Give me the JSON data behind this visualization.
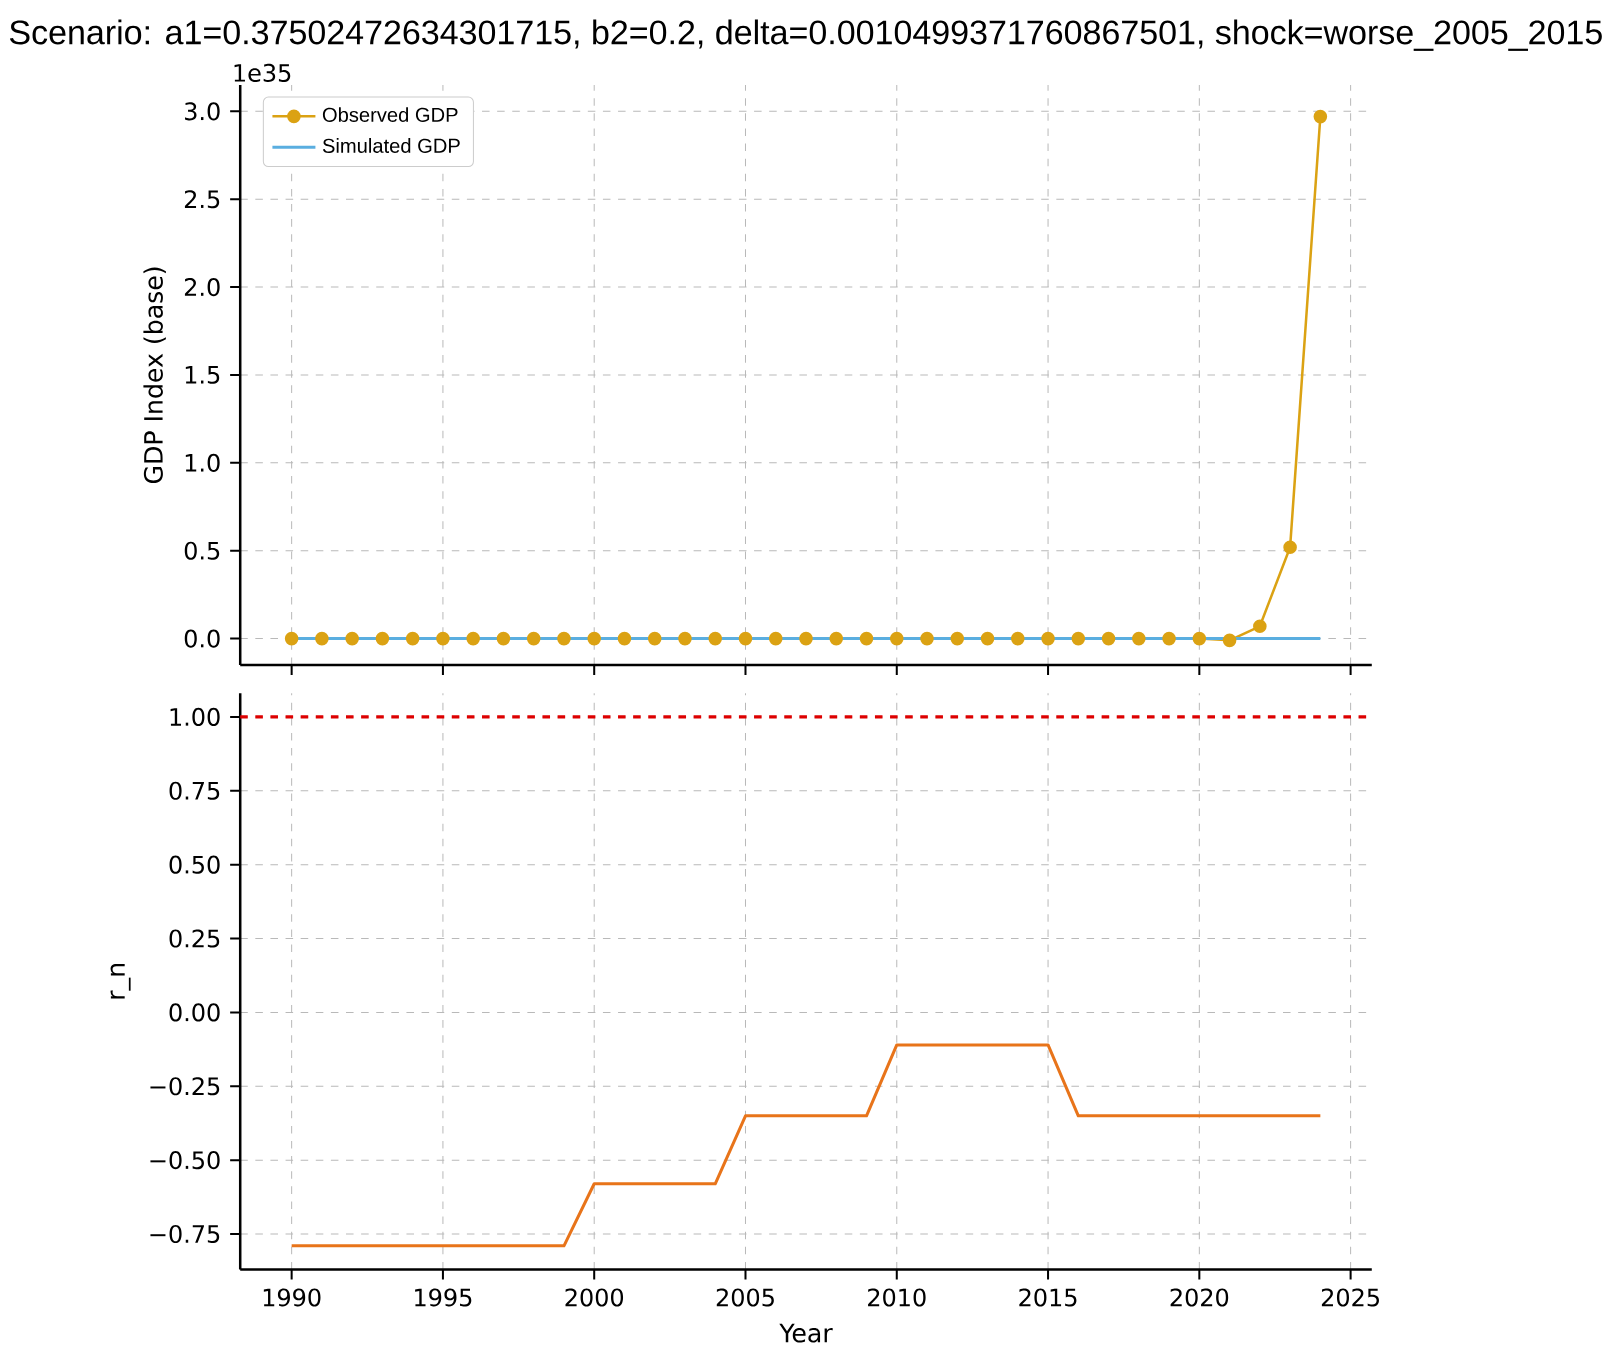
{
  "chart_data": [
    {
      "type": "line",
      "title": "Scenario: a1=0.37502472634301715, b2=0.2, delta=0.0010499371760867501, shock=worse_2005_2015",
      "ylabel": "GDP Index (base)",
      "annotations": [
        "1e35"
      ],
      "x": [
        1990,
        1991,
        1992,
        1993,
        1994,
        1995,
        1996,
        1997,
        1998,
        1999,
        2000,
        2001,
        2002,
        2003,
        2004,
        2005,
        2006,
        2007,
        2008,
        2009,
        2010,
        2011,
        2012,
        2013,
        2014,
        2015,
        2016,
        2017,
        2018,
        2019,
        2020,
        2021,
        2022,
        2023,
        2024
      ],
      "series": [
        {
          "name": "Observed GDP",
          "color": "#dba213",
          "marker": "circle",
          "values": [
            0,
            0,
            0,
            0,
            0,
            0,
            0,
            0,
            0,
            0,
            0,
            0,
            0,
            0,
            0,
            0,
            0,
            0,
            0,
            0,
            0,
            0,
            0,
            0,
            0,
            0,
            0,
            0,
            0,
            0,
            0,
            -0.01,
            0.07,
            0.52,
            2.97
          ]
        },
        {
          "name": "Simulated GDP",
          "color": "#5aaee0",
          "marker": "none",
          "values": [
            0,
            0,
            0,
            0,
            0,
            0,
            0,
            0,
            0,
            0,
            0,
            0,
            0,
            0,
            0,
            0,
            0,
            0,
            0,
            0,
            0,
            0,
            0,
            0,
            0,
            0,
            0,
            0,
            0,
            0,
            0,
            0,
            0,
            0,
            0
          ]
        }
      ],
      "xlim": [
        1988.3,
        2025.7
      ],
      "xticks": [
        1990,
        1995,
        2000,
        2005,
        2010,
        2015,
        2020,
        2025
      ],
      "ylim": [
        -0.15,
        3.15
      ],
      "yticks": [
        {
          "value": 0,
          "label": "0.0"
        },
        {
          "value": 0.5,
          "label": "0.5"
        },
        {
          "value": 1,
          "label": "1.0"
        },
        {
          "value": 1.5,
          "label": "1.5"
        },
        {
          "value": 2,
          "label": "2.0"
        },
        {
          "value": 2.5,
          "label": "2.5"
        },
        {
          "value": 3,
          "label": "3.0"
        }
      ],
      "tick_labels": "y",
      "grid": true,
      "legend": "top left"
    },
    {
      "type": "line",
      "xlabel": "Year",
      "ylabel": "r_n",
      "x": [
        1990,
        1991,
        1992,
        1993,
        1994,
        1995,
        1996,
        1997,
        1998,
        1999,
        2000,
        2001,
        2002,
        2003,
        2004,
        2005,
        2006,
        2007,
        2008,
        2009,
        2010,
        2011,
        2012,
        2013,
        2014,
        2015,
        2016,
        2017,
        2018,
        2019,
        2020,
        2021,
        2022,
        2023,
        2024
      ],
      "series": [
        {
          "color": "#e8741a",
          "values": [
            -0.79,
            -0.79,
            -0.79,
            -0.79,
            -0.79,
            -0.79,
            -0.79,
            -0.79,
            -0.79,
            -0.79,
            -0.58,
            -0.58,
            -0.58,
            -0.58,
            -0.58,
            -0.35,
            -0.35,
            -0.35,
            -0.35,
            -0.35,
            -0.11,
            -0.11,
            -0.11,
            -0.11,
            -0.11,
            -0.11,
            -0.35,
            -0.35,
            -0.35,
            -0.35,
            -0.35,
            -0.35,
            -0.35,
            -0.35,
            -0.35
          ]
        }
      ],
      "ref_lines": [
        {
          "axis": "y",
          "value": 1.0,
          "color": "#dd0000",
          "line_style": "dashed"
        }
      ],
      "xlim": [
        1988.3,
        2025.7
      ],
      "xticks": [
        1990,
        1995,
        2000,
        2005,
        2010,
        2015,
        2020,
        2025
      ],
      "ylim": [
        -0.87,
        1.08
      ],
      "yticks": [
        {
          "value": -0.75,
          "label": "−0.75"
        },
        {
          "value": -0.5,
          "label": "−0.50"
        },
        {
          "value": -0.25,
          "label": "−0.25"
        },
        {
          "value": 0,
          "label": "0.00"
        },
        {
          "value": 0.25,
          "label": "0.25"
        },
        {
          "value": 0.5,
          "label": "0.50"
        },
        {
          "value": 0.75,
          "label": "0.75"
        },
        {
          "value": 1,
          "label": "1.00"
        }
      ],
      "grid": true
    }
  ]
}
